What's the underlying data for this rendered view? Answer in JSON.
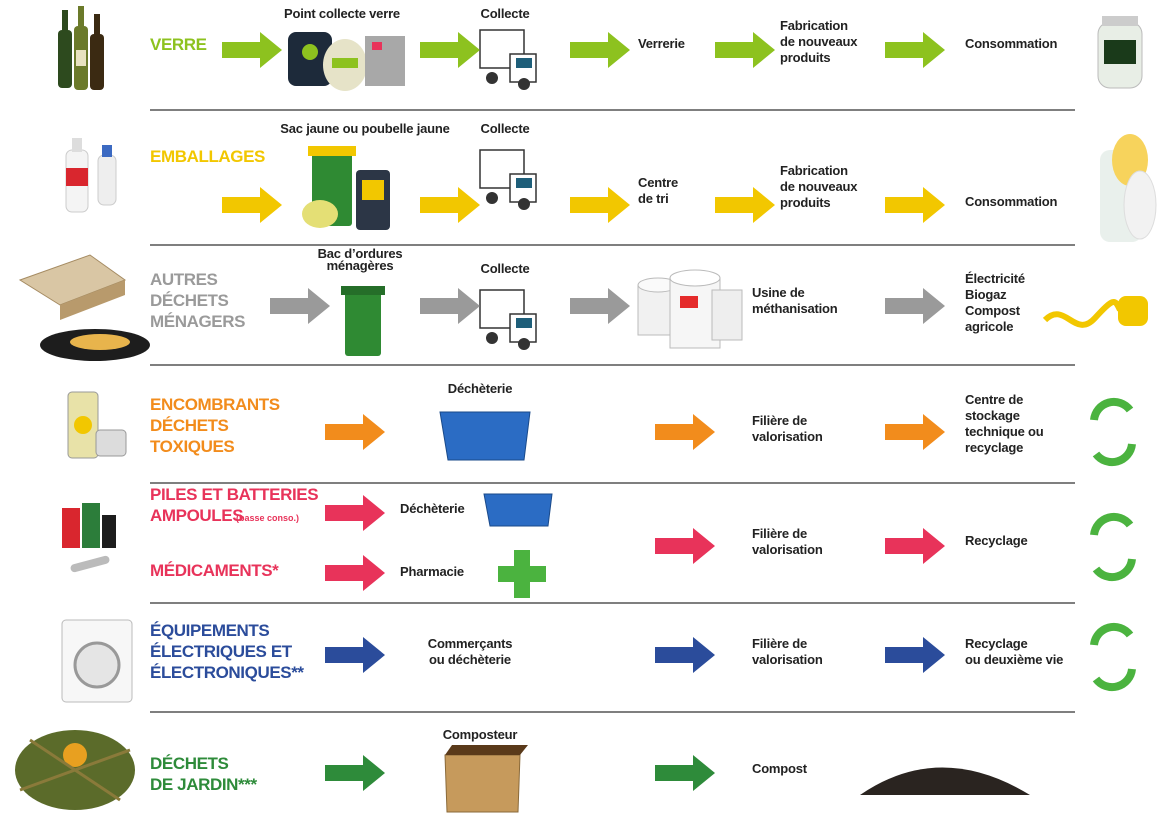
{
  "rows": [
    {
      "color": "#8dc21f",
      "category": {
        "lines": [
          "VERRE"
        ]
      },
      "steps": [
        {
          "lines": [
            "Point collecte verre"
          ]
        },
        {
          "lines": [
            "Collecte"
          ]
        },
        {
          "lines": [
            "Verrerie"
          ]
        },
        {
          "lines": [
            "Fabrication",
            "de nouveaux",
            "produits"
          ]
        },
        {
          "lines": [
            "Consommation"
          ]
        }
      ]
    },
    {
      "color": "#f2c700",
      "category": {
        "lines": [
          "EMBALLAGES"
        ]
      },
      "steps": [
        {
          "lines": [
            "Sac jaune ou poubelle jaune"
          ]
        },
        {
          "lines": [
            "Collecte"
          ]
        },
        {
          "lines": [
            "Centre",
            "de tri"
          ]
        },
        {
          "lines": [
            "Fabrication",
            "de nouveaux",
            "produits"
          ]
        },
        {
          "lines": [
            "Consommation"
          ]
        }
      ]
    },
    {
      "color": "#9a9a9a",
      "category": {
        "lines": [
          "AUTRES",
          "DÉCHETS",
          "MÉNAGERS"
        ]
      },
      "steps": [
        {
          "lines": [
            "Bac d’ordures",
            "ménagères"
          ]
        },
        {
          "lines": [
            "Collecte"
          ]
        },
        {
          "lines": [
            "Usine de",
            "méthanisation"
          ]
        },
        {
          "lines": [
            "Électricité",
            "Biogaz",
            "Compost",
            "agricole"
          ]
        }
      ]
    },
    {
      "color": "#f28c1c",
      "category": {
        "lines": [
          "ENCOMBRANTS",
          "DÉCHETS",
          "TOXIQUES"
        ]
      },
      "steps": [
        {
          "lines": [
            "Déchèterie"
          ]
        },
        {
          "lines": [
            "Filière de",
            "valorisation"
          ]
        },
        {
          "lines": [
            "Centre de",
            "stockage",
            "technique ou",
            "recyclage"
          ]
        }
      ]
    },
    {
      "color": "#e8335a",
      "category": {
        "lines": [
          "PILES ET BATTERIES",
          "AMPOULES"
        ],
        "note": "(basse conso.)"
      },
      "category_2": {
        "lines": [
          "MÉDICAMENTS*"
        ]
      },
      "steps": [
        {
          "lines": [
            "Déchèterie"
          ]
        },
        {
          "lines": [
            "Pharmacie"
          ]
        },
        {
          "lines": [
            "Filière de",
            "valorisation"
          ]
        },
        {
          "lines": [
            "Recyclage"
          ]
        }
      ]
    },
    {
      "color": "#2b4c9b",
      "category": {
        "lines": [
          "ÉQUIPEMENTS",
          "ÉLECTRIQUES ET",
          "ÉLECTRONIQUES**"
        ]
      },
      "steps": [
        {
          "lines": [
            "Commerçants",
            "ou déchèterie"
          ]
        },
        {
          "lines": [
            "Filière de",
            "valorisation"
          ]
        },
        {
          "lines": [
            "Recyclage",
            "ou deuxième vie"
          ]
        }
      ]
    },
    {
      "color": "#2e8b3a",
      "category": {
        "lines": [
          "DÉCHETS",
          "DE JARDIN***"
        ]
      },
      "steps": [
        {
          "lines": [
            "Composteur"
          ]
        },
        {
          "lines": [
            "Compost"
          ]
        }
      ]
    }
  ]
}
